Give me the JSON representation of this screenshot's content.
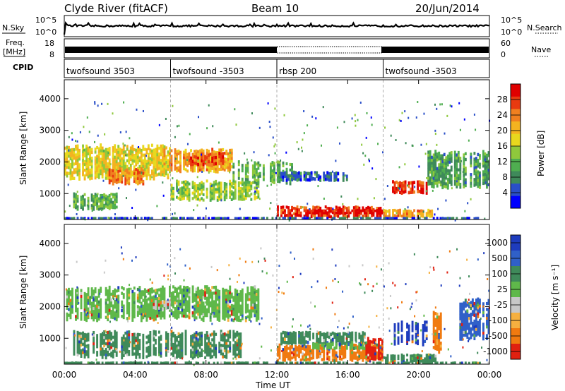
{
  "header": {
    "station": "Clyde River (fitACF)",
    "beam": "Beam 10",
    "date": "20/Jun/2014"
  },
  "strips": {
    "nsky_label": "N.Sky",
    "nsky_ticks": [
      "10^5",
      "10^0"
    ],
    "nsearch_label": "N.Search",
    "freq_label_1": "Freq.",
    "freq_label_2": "[MHz]",
    "freq_ticks": [
      "18",
      "8"
    ],
    "nave_ticks": [
      "60",
      "0"
    ],
    "nave_label": "Nave",
    "cpid_label": "CPID"
  },
  "cpid_segments": [
    {
      "label": "twofsound 3503",
      "start_h": 0,
      "end_h": 6
    },
    {
      "label": "twofsound -3503",
      "start_h": 6,
      "end_h": 12
    },
    {
      "label": "rbsp 200",
      "start_h": 12,
      "end_h": 18
    },
    {
      "label": "twofsound -3503",
      "start_h": 18,
      "end_h": 24
    }
  ],
  "chart_data": [
    {
      "type": "heatmap",
      "quantity": "Power",
      "ylabel": "Slant Range [km]",
      "xlabel": "Time UT",
      "xlim_hours": [
        0,
        24
      ],
      "ylim_km": [
        180,
        4600
      ],
      "yticks": [
        1000,
        2000,
        3000,
        4000
      ],
      "colorbar": {
        "label": "Power [dB]",
        "range": [
          0,
          32
        ],
        "ticks": [
          4,
          8,
          12,
          16,
          20,
          24,
          28
        ],
        "tick_labels": [
          "4",
          "8",
          "12",
          "16",
          "20",
          "24",
          "28"
        ],
        "colors": [
          "#0000ff",
          "#2a4fc8",
          "#3f8a5a",
          "#4fae50",
          "#8fc83c",
          "#e8d81e",
          "#f3b320",
          "#f08020",
          "#e83a10",
          "#e00000"
        ]
      },
      "regions": [
        {
          "t0": 0,
          "t1": 6,
          "r0": 1500,
          "r1": 2500,
          "v": 18
        },
        {
          "t0": 2.5,
          "t1": 4.5,
          "r0": 1300,
          "r1": 1800,
          "v": 24
        },
        {
          "t0": 5.5,
          "t1": 9.5,
          "r0": 1700,
          "r1": 2400,
          "v": 22
        },
        {
          "t0": 7,
          "t1": 9,
          "r0": 1900,
          "r1": 2300,
          "v": 26
        },
        {
          "t0": 0.5,
          "t1": 3,
          "r0": 500,
          "r1": 1000,
          "v": 12
        },
        {
          "t0": 6,
          "t1": 11,
          "r0": 800,
          "r1": 1400,
          "v": 14
        },
        {
          "t0": 9.5,
          "t1": 13,
          "r0": 1300,
          "r1": 2000,
          "v": 12
        },
        {
          "t0": 12,
          "t1": 18,
          "r0": 250,
          "r1": 600,
          "v": 28
        },
        {
          "t0": 14,
          "t1": 18,
          "r0": 350,
          "r1": 500,
          "v": 31
        },
        {
          "t0": 18,
          "t1": 21,
          "r0": 250,
          "r1": 500,
          "v": 22
        },
        {
          "t0": 18.5,
          "t1": 20.5,
          "r0": 1000,
          "r1": 1400,
          "v": 28
        },
        {
          "t0": 20.5,
          "t1": 24,
          "r0": 1200,
          "r1": 2300,
          "v": 10
        },
        {
          "t0": 12,
          "t1": 16,
          "r0": 1400,
          "r1": 1700,
          "v": 6
        },
        {
          "t0": 0,
          "t1": 24,
          "r0": 180,
          "r1": 260,
          "v": 5
        }
      ]
    },
    {
      "type": "heatmap",
      "quantity": "Velocity",
      "ylabel": "Slant Range [km]",
      "xlabel": "Time UT",
      "xlim_hours": [
        0,
        24
      ],
      "ylim_km": [
        180,
        4600
      ],
      "yticks": [
        1000,
        2000,
        3000,
        4000
      ],
      "xtick_labels": [
        "00:00",
        "04:00",
        "08:00",
        "12:00",
        "16:00",
        "20:00",
        "00:00"
      ],
      "colorbar": {
        "label": "Velocity [m s⁻¹]",
        "tick_labels": [
          "1000",
          "500",
          "100",
          "25",
          "-25",
          "-100",
          "-500",
          "-1000"
        ],
        "colors": [
          "#1e3cbe",
          "#3060c8",
          "#3f8a5a",
          "#5fb84a",
          "#c8c8c8",
          "#f5b040",
          "#f07a10",
          "#e02010"
        ]
      },
      "regions": [
        {
          "t0": 0,
          "t1": 11,
          "r0": 1600,
          "r1": 2600,
          "v": "25"
        },
        {
          "t0": 0.5,
          "t1": 10,
          "r0": 400,
          "r1": 1200,
          "v": "100"
        },
        {
          "t0": 5,
          "t1": 6,
          "r0": 1900,
          "r1": 2200,
          "v": "-25"
        },
        {
          "t0": 12,
          "t1": 18,
          "r0": 300,
          "r1": 800,
          "v": "-500"
        },
        {
          "t0": 12,
          "t1": 17,
          "r0": 800,
          "r1": 1200,
          "v": "100"
        },
        {
          "t0": 14,
          "t1": 17,
          "r0": 650,
          "r1": 850,
          "v": "25"
        },
        {
          "t0": 17,
          "t1": 18,
          "r0": 300,
          "r1": 1000,
          "v": "-1000"
        },
        {
          "t0": 18.5,
          "t1": 20.5,
          "r0": 800,
          "r1": 1500,
          "v": "1000"
        },
        {
          "t0": 18,
          "t1": 21,
          "r0": 250,
          "r1": 500,
          "v": "100"
        },
        {
          "t0": 20.8,
          "t1": 21.3,
          "r0": 600,
          "r1": 1800,
          "v": "-500"
        },
        {
          "t0": 22,
          "t1": 24,
          "r0": 1000,
          "r1": 2200,
          "v": "500"
        },
        {
          "t0": 0,
          "t1": 24,
          "r0": 180,
          "r1": 260,
          "v": "100"
        }
      ]
    }
  ]
}
